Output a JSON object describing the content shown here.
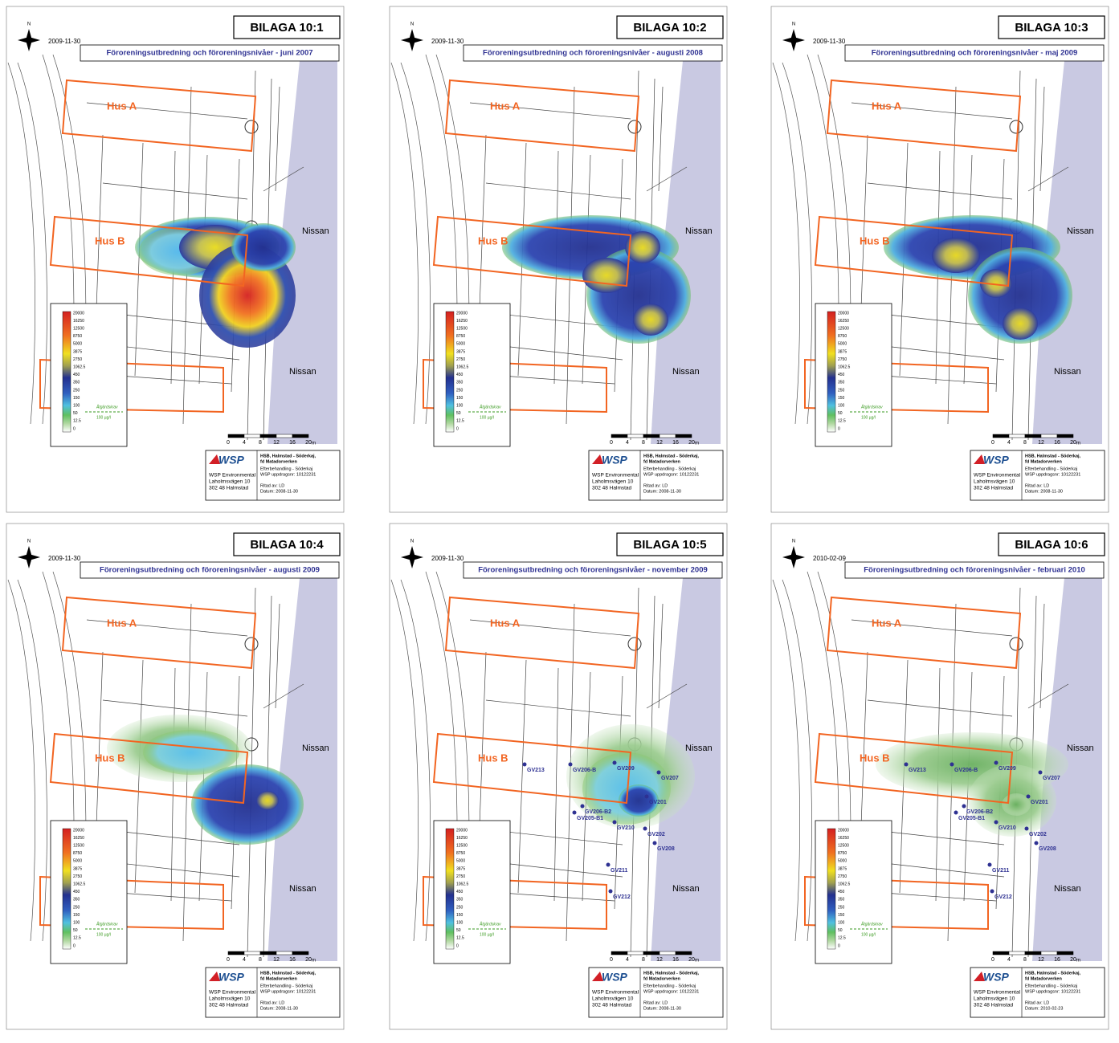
{
  "panels": [
    {
      "bilaga": "BILAGA 10:1",
      "date": "2009-11-30",
      "title": "Föroreningsutbredning och föroreningsnivåer - juni 2007",
      "datum": "Datum: 2008-11-30",
      "wells": []
    },
    {
      "bilaga": "BILAGA 10:2",
      "date": "2009-11-30",
      "title": "Föroreningsutbredning och föroreningsnivåer - augusti 2008",
      "datum": "Datum: 2008-11-30",
      "wells": []
    },
    {
      "bilaga": "BILAGA 10:3",
      "date": "2009-11-30",
      "title": "Föroreningsutbredning och föroreningsnivåer - maj 2009",
      "datum": "Datum: 2008-11-30",
      "wells": []
    },
    {
      "bilaga": "BILAGA 10:4",
      "date": "2009-11-30",
      "title": "Föroreningsutbredning och föroreningsnivåer - augusti 2009",
      "datum": "Datum: 2008-11-30",
      "wells": []
    },
    {
      "bilaga": "BILAGA 10:5",
      "date": "2009-11-30",
      "title": "Föroreningsutbredning och föroreningsnivåer - november 2009",
      "datum": "Datum: 2008-11-30",
      "wells": [
        "GV213",
        "GV206-B",
        "GV209",
        "GV207",
        "GV206-B2",
        "GV205-B1",
        "GV201",
        "GV210",
        "GV202",
        "GV208",
        "GV211",
        "GV212"
      ]
    },
    {
      "bilaga": "BILAGA 10:6",
      "date": "2010-02-09",
      "title": "Föroreningsutbredning och föroreningsnivåer - februari 2010",
      "datum": "Datum: 2010-02-23",
      "wells": [
        "GV213",
        "GV206-B",
        "GV209",
        "GV207",
        "GV206-B2",
        "GV205-B1",
        "GV201",
        "GV210",
        "GV202",
        "GV208",
        "GV211",
        "GV212"
      ]
    }
  ],
  "map_labels": {
    "north": "N",
    "hus_a": "Hus A",
    "hus_b": "Hus B",
    "river": "Nissan"
  },
  "legend": {
    "levels": [
      "20000",
      "16250",
      "12500",
      "8750",
      "5000",
      "3875",
      "2750",
      "1062.5",
      "450",
      "350",
      "250",
      "150",
      "100",
      "50",
      "12.5",
      "0"
    ],
    "threshold_label": "Åtgärdskrav",
    "threshold_value": "100 µg/l"
  },
  "scale": {
    "ticks": [
      "0",
      "4",
      "8",
      "12",
      "16",
      "20"
    ],
    "unit": "m"
  },
  "company": {
    "logo": "WSP",
    "lines": [
      "WSP Environmental",
      "Laholmsvägen 10",
      "302 48 Halmstad"
    ]
  },
  "project": {
    "name": [
      "HSB, Halmstad - Söderkaj,",
      "fd Matadorverken"
    ],
    "details": [
      "Efterbehandling - Söderkaj",
      "WSP uppdragsnr: 10122231"
    ],
    "drawn_by": "Ritad av: LD"
  }
}
